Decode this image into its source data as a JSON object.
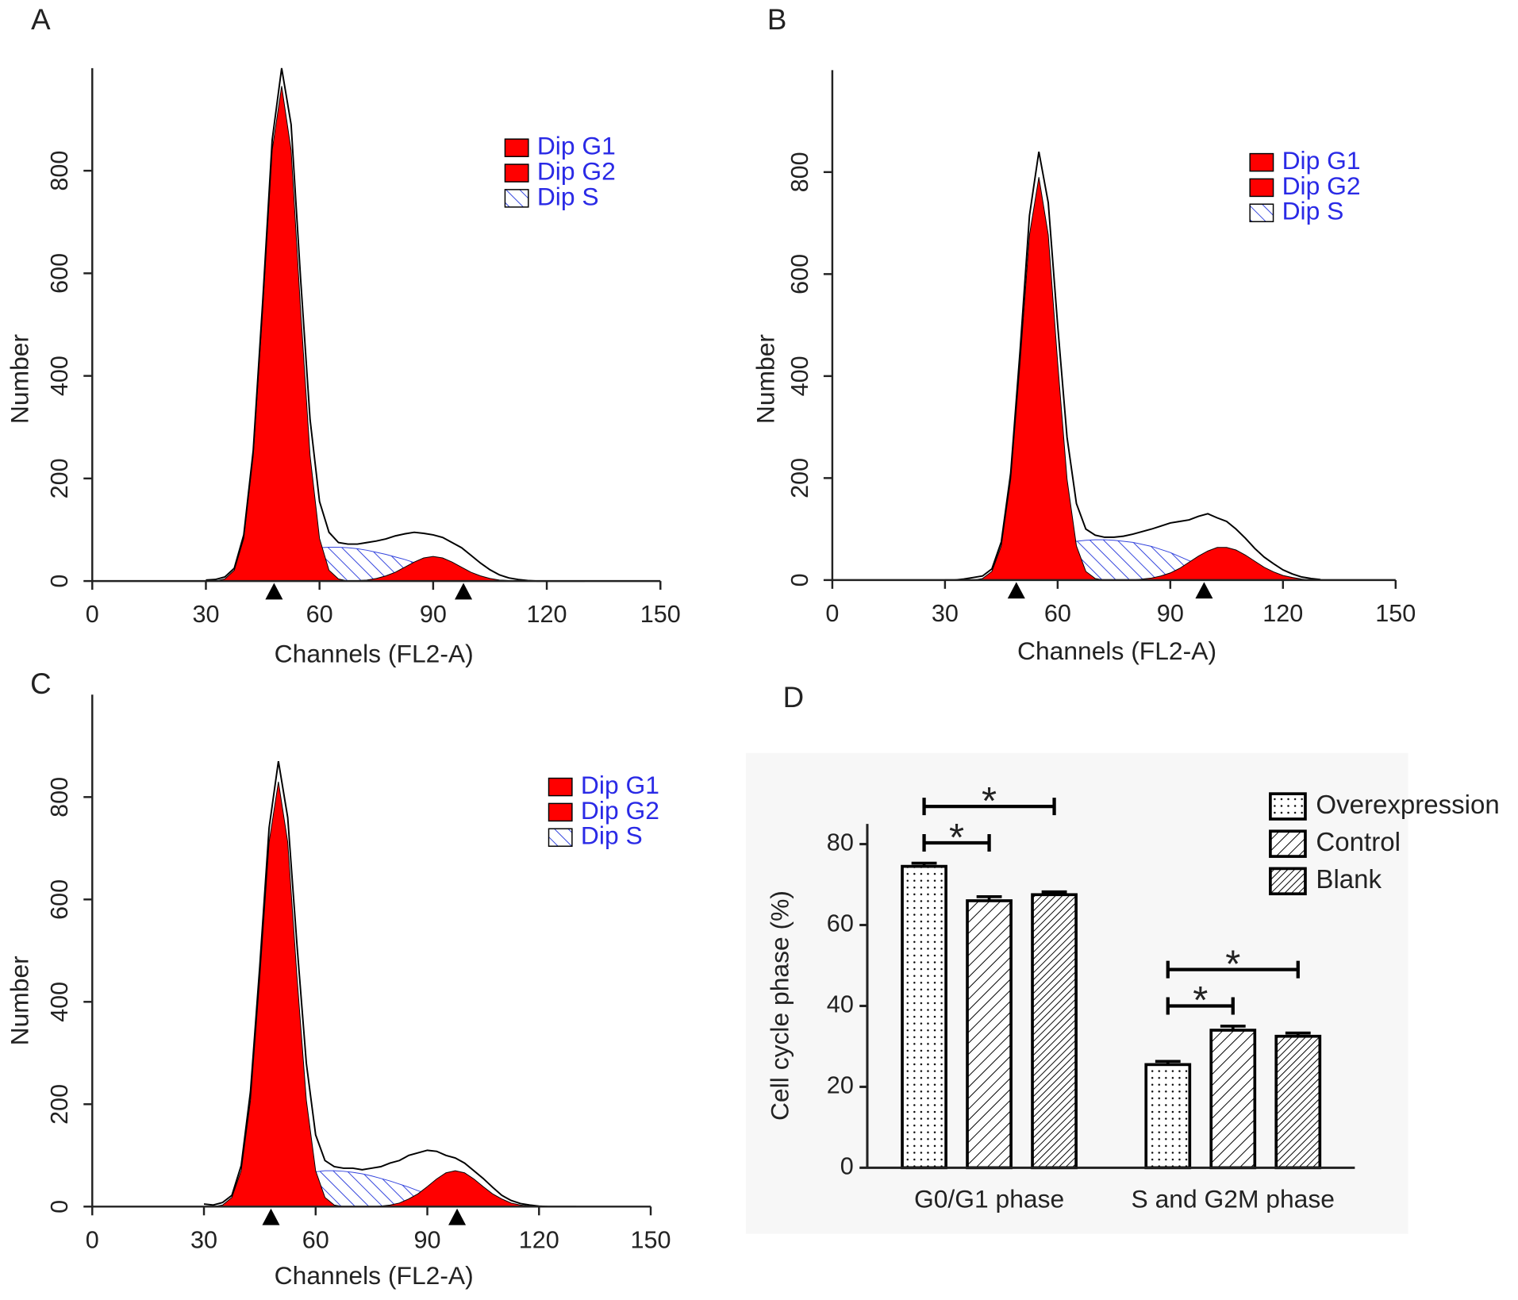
{
  "chart_data": [
    {
      "type": "area",
      "panel_label": "A",
      "x_label": "Channels (FL2-A)",
      "y_label": "Number",
      "xlim": [
        0,
        150
      ],
      "xticks": [
        0,
        30,
        60,
        90,
        120,
        150
      ],
      "ylim": [
        0,
        1000
      ],
      "yticks": [
        0,
        200,
        400,
        600,
        800
      ],
      "x": [
        30,
        32.5,
        35,
        37.5,
        40,
        42.5,
        45,
        47.5,
        50,
        52.5,
        55,
        57.5,
        60,
        62.5,
        65,
        67.5,
        70,
        72.5,
        75,
        77.5,
        80,
        82.5,
        85,
        87.5,
        90,
        92.5,
        95,
        97.5,
        100,
        102.5,
        105,
        107.5,
        110,
        112.5,
        115,
        117.5,
        120,
        122.5,
        125,
        127.5,
        130
      ],
      "series": [
        {
          "name": "Dip G1",
          "color": "#ff0000",
          "fill": "solid",
          "values": [
            0,
            0,
            4,
            21,
            83,
            245,
            529,
            840,
            965,
            840,
            529,
            245,
            83,
            21,
            4,
            0,
            0,
            0,
            0,
            0,
            0,
            0,
            0,
            0,
            0,
            0,
            0,
            0,
            0,
            0,
            0,
            0,
            0,
            0,
            0,
            0,
            0,
            0,
            0,
            0,
            0
          ]
        },
        {
          "name": "Dip G2",
          "color": "#ff0000",
          "fill": "solid",
          "values": [
            0,
            0,
            0,
            0,
            0,
            0,
            0,
            0,
            0,
            0,
            0,
            0,
            0,
            0,
            0,
            0,
            1,
            2,
            5,
            10,
            17,
            27,
            37,
            45,
            48,
            45,
            37,
            27,
            17,
            10,
            5,
            2,
            1,
            0,
            0,
            0,
            0,
            0,
            0,
            0,
            0
          ]
        },
        {
          "name": "Dip S",
          "color": "#3344dd",
          "fill": "back-hatch",
          "values": [
            0,
            0,
            0,
            0,
            0,
            3,
            10,
            20,
            32,
            44,
            55,
            62,
            65,
            66,
            66,
            65,
            63,
            60,
            56,
            52,
            47,
            42,
            36,
            30,
            24,
            18,
            13,
            8,
            4,
            1,
            0,
            0,
            0,
            0,
            0,
            0,
            0,
            0,
            0,
            0,
            0
          ]
        },
        {
          "color": "#000000",
          "fill": "none",
          "values": [
            2,
            3,
            8,
            25,
            90,
            255,
            545,
            860,
            1000,
            890,
            590,
            315,
            155,
            95,
            75,
            72,
            72,
            75,
            78,
            82,
            88,
            92,
            95,
            93,
            90,
            85,
            75,
            65,
            50,
            35,
            22,
            12,
            6,
            3,
            1,
            0,
            0,
            0,
            0,
            0,
            0
          ]
        }
      ],
      "markers": [
        48,
        98
      ]
    },
    {
      "type": "area",
      "panel_label": "B",
      "x_label": "Channels (FL2-A)",
      "y_label": "Number",
      "xlim": [
        0,
        150
      ],
      "xticks": [
        0,
        30,
        60,
        90,
        120,
        150
      ],
      "ylim": [
        0,
        1000
      ],
      "yticks": [
        0,
        200,
        400,
        600,
        800
      ],
      "x": [
        30,
        32.5,
        35,
        37.5,
        40,
        42.5,
        45,
        47.5,
        50,
        52.5,
        55,
        57.5,
        60,
        62.5,
        65,
        67.5,
        70,
        72.5,
        75,
        77.5,
        80,
        82.5,
        85,
        87.5,
        90,
        92.5,
        95,
        97.5,
        100,
        102.5,
        105,
        107.5,
        110,
        112.5,
        115,
        117.5,
        120,
        122.5,
        125,
        127.5,
        130
      ],
      "series": [
        {
          "name": "Dip G1",
          "color": "#ff0000",
          "fill": "solid",
          "values": [
            0,
            0,
            0,
            0,
            3,
            17,
            67,
            198,
            427,
            677,
            790,
            677,
            427,
            198,
            67,
            17,
            3,
            0,
            0,
            0,
            0,
            0,
            0,
            0,
            0,
            0,
            0,
            0,
            0,
            0,
            0,
            0,
            0,
            0,
            0,
            0,
            0,
            0,
            0,
            0,
            0
          ]
        },
        {
          "name": "Dip G2",
          "color": "#ff0000",
          "fill": "solid",
          "values": [
            0,
            0,
            0,
            0,
            0,
            0,
            0,
            0,
            0,
            0,
            0,
            0,
            0,
            0,
            0,
            0,
            0,
            0,
            0,
            0,
            0,
            2,
            4,
            8,
            14,
            23,
            35,
            47,
            57,
            64,
            64,
            59,
            49,
            37,
            25,
            16,
            9,
            5,
            2,
            0,
            0
          ]
        },
        {
          "name": "Dip S",
          "color": "#3344dd",
          "fill": "back-hatch",
          "values": [
            0,
            0,
            0,
            0,
            0,
            0,
            0,
            5,
            15,
            28,
            42,
            55,
            65,
            72,
            76,
            78,
            79,
            79,
            78,
            76,
            74,
            70,
            66,
            60,
            54,
            46,
            38,
            30,
            22,
            15,
            9,
            4,
            1,
            0,
            0,
            0,
            0,
            0,
            0,
            0,
            0
          ]
        },
        {
          "color": "#000000",
          "fill": "none",
          "values": [
            0,
            0,
            2,
            5,
            8,
            22,
            75,
            210,
            450,
            715,
            840,
            740,
            500,
            280,
            150,
            100,
            88,
            84,
            84,
            86,
            90,
            95,
            100,
            106,
            112,
            115,
            118,
            125,
            130,
            122,
            115,
            100,
            82,
            62,
            45,
            32,
            20,
            12,
            6,
            3,
            1
          ]
        }
      ],
      "markers": [
        49,
        99
      ]
    },
    {
      "type": "area",
      "panel_label": "C",
      "x_label": "Channels (FL2-A)",
      "y_label": "Number",
      "xlim": [
        0,
        150
      ],
      "xticks": [
        0,
        30,
        60,
        90,
        120,
        150
      ],
      "ylim": [
        0,
        1000
      ],
      "yticks": [
        0,
        200,
        400,
        600,
        800
      ],
      "x": [
        30,
        32.5,
        35,
        37.5,
        40,
        42.5,
        45,
        47.5,
        50,
        52.5,
        55,
        57.5,
        60,
        62.5,
        65,
        67.5,
        70,
        72.5,
        75,
        77.5,
        80,
        82.5,
        85,
        87.5,
        90,
        92.5,
        95,
        97.5,
        100,
        102.5,
        105,
        107.5,
        110,
        112.5,
        115,
        117.5,
        120,
        122.5,
        125,
        127.5,
        130
      ],
      "series": [
        {
          "name": "Dip G1",
          "color": "#ff0000",
          "fill": "solid",
          "values": [
            0,
            0,
            3,
            18,
            70,
            208,
            448,
            712,
            830,
            712,
            448,
            208,
            70,
            18,
            3,
            0,
            0,
            0,
            0,
            0,
            0,
            0,
            0,
            0,
            0,
            0,
            0,
            0,
            0,
            0,
            0,
            0,
            0,
            0,
            0,
            0,
            0,
            0,
            0,
            0,
            0
          ]
        },
        {
          "name": "Dip G2",
          "color": "#ff0000",
          "fill": "solid",
          "values": [
            0,
            0,
            0,
            0,
            0,
            0,
            0,
            0,
            0,
            0,
            0,
            0,
            0,
            0,
            0,
            0,
            0,
            0,
            0,
            1,
            3,
            7,
            15,
            25,
            39,
            54,
            66,
            70,
            66,
            54,
            39,
            25,
            15,
            7,
            3,
            1,
            0,
            0,
            0,
            0,
            0
          ]
        },
        {
          "name": "Dip S",
          "color": "#3344dd",
          "fill": "back-hatch",
          "values": [
            0,
            0,
            0,
            0,
            0,
            3,
            10,
            20,
            32,
            45,
            56,
            64,
            68,
            70,
            70,
            69,
            67,
            64,
            60,
            55,
            50,
            44,
            38,
            31,
            25,
            19,
            13,
            8,
            4,
            1,
            0,
            0,
            0,
            0,
            0,
            0,
            0,
            0,
            0,
            0,
            0
          ]
        },
        {
          "color": "#000000",
          "fill": "none",
          "values": [
            5,
            3,
            8,
            22,
            80,
            225,
            470,
            740,
            870,
            760,
            510,
            280,
            140,
            90,
            78,
            75,
            75,
            72,
            75,
            78,
            85,
            90,
            100,
            105,
            110,
            108,
            100,
            95,
            85,
            70,
            55,
            38,
            22,
            12,
            6,
            3,
            1,
            0,
            0,
            0,
            0
          ]
        }
      ],
      "markers": [
        48,
        98
      ]
    },
    {
      "type": "bar",
      "panel_label": "D",
      "y_label": "Cell cycle phase (%)",
      "categories": [
        "G0/G1 phase",
        "S and G2M phase"
      ],
      "ylim": [
        0,
        85
      ],
      "yticks": [
        0,
        20,
        40,
        60,
        80
      ],
      "series": [
        {
          "name": "Overexpression",
          "color": "#000000",
          "fill": "dots",
          "values": [
            74.5,
            25.5
          ],
          "errors": [
            0.8,
            0.8
          ]
        },
        {
          "name": "Control",
          "color": "#000000",
          "fill": "hatch",
          "values": [
            66,
            34
          ],
          "errors": [
            1,
            1
          ]
        },
        {
          "name": "Blank",
          "color": "#000000",
          "fill": "dense-hatch",
          "values": [
            67.5,
            32.5
          ],
          "errors": [
            0.7,
            0.8
          ]
        }
      ],
      "significance": [
        {
          "category": 0,
          "pair": [
            0,
            2
          ],
          "label": "*"
        },
        {
          "category": 0,
          "pair": [
            0,
            1
          ],
          "label": "*"
        },
        {
          "category": 1,
          "pair": [
            0,
            2
          ],
          "label": "*"
        },
        {
          "category": 1,
          "pair": [
            0,
            1
          ],
          "label": "*"
        }
      ]
    }
  ]
}
